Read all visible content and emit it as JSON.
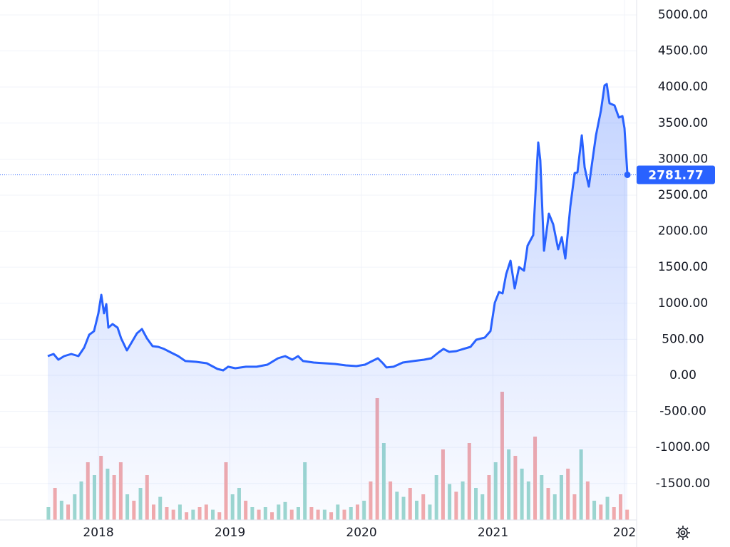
{
  "chart_data": {
    "type": "area",
    "xlim": [
      2017.252,
      2022.092
    ],
    "ylim": [
      -2006,
      5207
    ],
    "xticks": [
      2018,
      2019,
      2020,
      2021,
      {
        "value": 2022,
        "label": "202"
      }
    ],
    "yticks": [
      {
        "value": 5000,
        "label": "5000.00"
      },
      {
        "value": 4500,
        "label": "4500.00"
      },
      {
        "value": 4000,
        "label": "4000.00"
      },
      {
        "value": 3500,
        "label": "3500.00"
      },
      {
        "value": 3000,
        "label": "3000.00"
      },
      {
        "value": 2500,
        "label": "2500.00"
      },
      {
        "value": 2000,
        "label": "2000.00"
      },
      {
        "value": 1500,
        "label": "1500.00"
      },
      {
        "value": 1000,
        "label": "1000.00"
      },
      {
        "value": 500,
        "label": "500.00"
      },
      {
        "value": 0,
        "label": "0.00"
      },
      {
        "value": -500,
        "label": "-500.00"
      },
      {
        "value": -1000,
        "label": "-1000.00"
      },
      {
        "value": -1500,
        "label": "-1500.00"
      }
    ],
    "grid": true,
    "last_value": 2781.77,
    "series": [
      {
        "color": "#2962ff",
        "x": [
          2017.615,
          2017.659,
          2017.696,
          2017.74,
          2017.794,
          2017.848,
          2017.892,
          2017.93,
          2017.967,
          2018.0,
          2018.022,
          2018.043,
          2018.06,
          2018.076,
          2018.108,
          2018.146,
          2018.173,
          2018.217,
          2018.255,
          2018.293,
          2018.331,
          2018.369,
          2018.412,
          2018.455,
          2018.499,
          2018.553,
          2018.607,
          2018.661,
          2018.743,
          2018.824,
          2018.905,
          2018.949,
          2018.986,
          2019.041,
          2019.122,
          2019.203,
          2019.285,
          2019.366,
          2019.42,
          2019.474,
          2019.518,
          2019.556,
          2019.637,
          2019.718,
          2019.799,
          2019.881,
          2019.962,
          2020.027,
          2020.07,
          2020.125,
          2020.163,
          2020.19,
          2020.244,
          2020.314,
          2020.396,
          2020.477,
          2020.531,
          2020.585,
          2020.623,
          2020.667,
          2020.721,
          2020.775,
          2020.829,
          2020.873,
          2020.938,
          2020.981,
          2021.014,
          2021.046,
          2021.073,
          2021.1,
          2021.133,
          2021.165,
          2021.198,
          2021.236,
          2021.263,
          2021.306,
          2021.328,
          2021.344,
          2021.36,
          2021.388,
          2021.425,
          2021.458,
          2021.496,
          2021.523,
          2021.55,
          2021.588,
          2021.621,
          2021.642,
          2021.675,
          2021.697,
          2021.729,
          2021.751,
          2021.783,
          2021.821,
          2021.848,
          2021.865,
          2021.886,
          2021.924,
          2021.957,
          2021.984,
          2022.0,
          2022.022
        ],
        "values": [
          267,
          296,
          217,
          267,
          296,
          267,
          385,
          563,
          613,
          860,
          1116,
          860,
          988,
          662,
          711,
          662,
          514,
          346,
          464,
          583,
          642,
          514,
          405,
          395,
          366,
          316,
          267,
          198,
          188,
          168,
          89,
          69,
          119,
          99,
          119,
          119,
          148,
          237,
          267,
          217,
          267,
          198,
          178,
          168,
          158,
          138,
          128,
          148,
          188,
          237,
          168,
          109,
          119,
          178,
          198,
          217,
          237,
          316,
          366,
          326,
          336,
          366,
          395,
          494,
          524,
          613,
          1008,
          1156,
          1136,
          1403,
          1591,
          1205,
          1502,
          1452,
          1798,
          1946,
          2687,
          3231,
          2984,
          1729,
          2243,
          2095,
          1749,
          1917,
          1620,
          2342,
          2806,
          2816,
          3330,
          2885,
          2618,
          2915,
          3330,
          3675,
          4021,
          4041,
          3774,
          3745,
          3577,
          3596,
          3428,
          2781.77
        ]
      }
    ],
    "volume": {
      "x": [
        2017.62,
        2017.67,
        2017.72,
        2017.77,
        2017.82,
        2017.87,
        2017.92,
        2017.97,
        2018.02,
        2018.07,
        2018.12,
        2018.17,
        2018.22,
        2018.27,
        2018.32,
        2018.37,
        2018.42,
        2018.47,
        2018.52,
        2018.57,
        2018.62,
        2018.67,
        2018.72,
        2018.77,
        2018.82,
        2018.87,
        2018.92,
        2018.97,
        2019.02,
        2019.07,
        2019.12,
        2019.17,
        2019.22,
        2019.27,
        2019.32,
        2019.37,
        2019.42,
        2019.47,
        2019.52,
        2019.57,
        2019.62,
        2019.67,
        2019.72,
        2019.77,
        2019.82,
        2019.87,
        2019.92,
        2019.97,
        2020.02,
        2020.07,
        2020.12,
        2020.17,
        2020.22,
        2020.27,
        2020.32,
        2020.37,
        2020.42,
        2020.47,
        2020.52,
        2020.57,
        2020.62,
        2020.67,
        2020.72,
        2020.77,
        2020.82,
        2020.87,
        2020.92,
        2020.97,
        2021.02,
        2021.07,
        2021.12,
        2021.17,
        2021.22,
        2021.27,
        2021.32,
        2021.37,
        2021.42,
        2021.47,
        2021.52,
        2021.57,
        2021.62,
        2021.67,
        2021.72,
        2021.77,
        2021.82,
        2021.87,
        2021.92,
        2021.97,
        2022.02
      ],
      "values": [
        10,
        25,
        15,
        12,
        20,
        30,
        45,
        35,
        50,
        40,
        35,
        45,
        20,
        15,
        25,
        35,
        12,
        18,
        10,
        8,
        12,
        6,
        8,
        10,
        12,
        8,
        6,
        45,
        20,
        25,
        15,
        10,
        8,
        10,
        6,
        12,
        14,
        8,
        10,
        45,
        10,
        8,
        8,
        6,
        12,
        8,
        10,
        12,
        15,
        30,
        95,
        60,
        30,
        22,
        18,
        25,
        15,
        20,
        12,
        35,
        55,
        28,
        22,
        30,
        60,
        25,
        20,
        35,
        45,
        100,
        55,
        50,
        40,
        30,
        65,
        35,
        25,
        20,
        35,
        40,
        20,
        55,
        30,
        15,
        12,
        18,
        10,
        20,
        8
      ],
      "colors": [
        "#9ed8cf",
        "#f4abab",
        "#9ed8cf",
        "#f4abab",
        "#9ed8cf",
        "#9ed8cf",
        "#f4abab",
        "#9ed8cf",
        "#f4abab",
        "#9ed8cf",
        "#f4abab",
        "#f4abab",
        "#9ed8cf",
        "#f4abab",
        "#9ed8cf",
        "#f4abab",
        "#f4abab",
        "#9ed8cf",
        "#f4abab",
        "#f4abab",
        "#9ed8cf",
        "#f4abab",
        "#9ed8cf",
        "#f4abab",
        "#f4abab",
        "#9ed8cf",
        "#f4abab",
        "#f4abab",
        "#9ed8cf",
        "#9ed8cf",
        "#f4abab",
        "#9ed8cf",
        "#f4abab",
        "#9ed8cf",
        "#f4abab",
        "#9ed8cf",
        "#9ed8cf",
        "#f4abab",
        "#9ed8cf",
        "#9ed8cf",
        "#f4abab",
        "#f4abab",
        "#9ed8cf",
        "#f4abab",
        "#9ed8cf",
        "#f4abab",
        "#9ed8cf",
        "#f4abab",
        "#9ed8cf",
        "#f4abab",
        "#f4abab",
        "#9ed8cf",
        "#f4abab",
        "#9ed8cf",
        "#9ed8cf",
        "#f4abab",
        "#9ed8cf",
        "#f4abab",
        "#9ed8cf",
        "#9ed8cf",
        "#f4abab",
        "#9ed8cf",
        "#f4abab",
        "#9ed8cf",
        "#f4abab",
        "#9ed8cf",
        "#9ed8cf",
        "#f4abab",
        "#9ed8cf",
        "#f4abab",
        "#9ed8cf",
        "#f4abab",
        "#9ed8cf",
        "#9ed8cf",
        "#f4abab",
        "#9ed8cf",
        "#f4abab",
        "#9ed8cf",
        "#9ed8cf",
        "#f4abab",
        "#f4abab",
        "#9ed8cf",
        "#f4abab",
        "#9ed8cf",
        "#f4abab",
        "#9ed8cf",
        "#f4abab",
        "#f4abab",
        "#f4abab"
      ]
    }
  }
}
